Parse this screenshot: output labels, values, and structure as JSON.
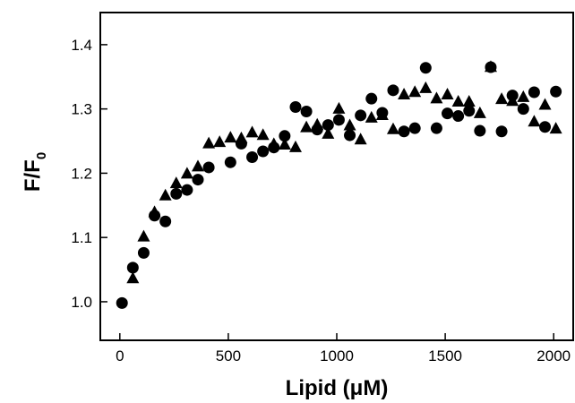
{
  "chart_data": {
    "type": "scatter",
    "title": "",
    "xlabel": "Lipid (μM)",
    "ylabel_main": "F/F",
    "ylabel_sub": "0",
    "xlim": [
      -90,
      2090
    ],
    "ylim": [
      0.94,
      1.45
    ],
    "xticks": [
      0,
      500,
      1000,
      1500,
      2000
    ],
    "yticks": [
      1.0,
      1.1,
      1.2,
      1.3,
      1.4
    ],
    "grid": false,
    "legend": "none",
    "series": [
      {
        "marker": "circle",
        "color": "#000000",
        "x": [
          10,
          60,
          110,
          160,
          210,
          260,
          310,
          360,
          410,
          510,
          560,
          610,
          660,
          710,
          760,
          810,
          860,
          910,
          960,
          1010,
          1060,
          1110,
          1160,
          1210,
          1260,
          1310,
          1360,
          1410,
          1460,
          1510,
          1560,
          1610,
          1660,
          1710,
          1760,
          1810,
          1860,
          1910,
          1960,
          2010
        ],
        "y": [
          0.998,
          1.053,
          1.076,
          1.134,
          1.125,
          1.168,
          1.174,
          1.19,
          1.209,
          1.217,
          1.246,
          1.225,
          1.234,
          1.24,
          1.258,
          1.303,
          1.296,
          1.268,
          1.275,
          1.283,
          1.259,
          1.29,
          1.316,
          1.294,
          1.329,
          1.265,
          1.27,
          1.364,
          1.27,
          1.293,
          1.289,
          1.297,
          1.266,
          1.365,
          1.265,
          1.321,
          1.3,
          1.326,
          1.272,
          1.327
        ]
      },
      {
        "marker": "triangle",
        "color": "#000000",
        "x": [
          60,
          110,
          160,
          210,
          260,
          310,
          360,
          410,
          460,
          510,
          560,
          610,
          660,
          710,
          760,
          810,
          860,
          910,
          960,
          1010,
          1060,
          1110,
          1160,
          1210,
          1260,
          1310,
          1360,
          1410,
          1460,
          1510,
          1560,
          1610,
          1660,
          1710,
          1760,
          1810,
          1860,
          1910,
          1960,
          2010
        ],
        "y": [
          1.036,
          1.101,
          1.139,
          1.165,
          1.184,
          1.199,
          1.21,
          1.246,
          1.248,
          1.255,
          1.254,
          1.263,
          1.259,
          1.245,
          1.244,
          1.24,
          1.271,
          1.275,
          1.261,
          1.3,
          1.274,
          1.252,
          1.286,
          1.29,
          1.268,
          1.322,
          1.326,
          1.332,
          1.316,
          1.322,
          1.311,
          1.311,
          1.293,
          1.365,
          1.315,
          1.312,
          1.318,
          1.28,
          1.306,
          1.269
        ]
      }
    ]
  }
}
